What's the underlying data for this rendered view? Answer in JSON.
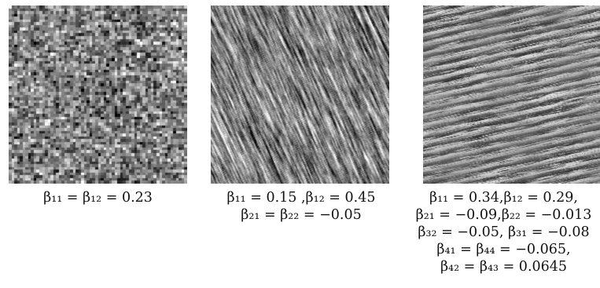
{
  "figure": {
    "panels": [
      {
        "texture": "iid-noise",
        "caption_lines": [
          "β₁₁ = β₁₂ = 0.23"
        ]
      },
      {
        "texture": "diagonal-streaks",
        "caption_lines": [
          "β₁₁ = 0.15 ,β₁₂ = 0.45",
          "β₂₁ = β₂₂ = −0.05"
        ]
      },
      {
        "texture": "oriented-stripes",
        "caption_lines": [
          "β₁₁ = 0.34,β₁₂ = 0.29,",
          "β₂₁ = −0.09,β₂₂ = −0.013",
          "β₃₂ = −0.05, β₃₁ = −0.08",
          "β₄₁ = β₄₄ = −0.065,",
          "β₄₂ = β₄₃ = 0.0645"
        ]
      }
    ]
  }
}
